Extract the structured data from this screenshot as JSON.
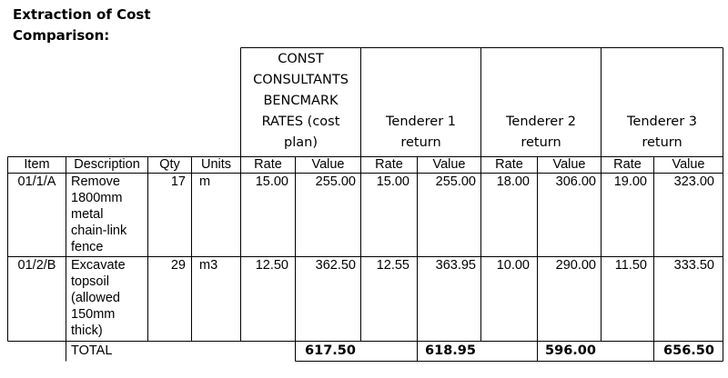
{
  "title": {
    "line1": "Extraction of Cost",
    "line2": "Comparison:"
  },
  "group_headers": {
    "benchmark": [
      "CONST",
      "CONSULTANTS",
      "BENCMARK",
      "RATES (cost",
      "plan)"
    ],
    "tenderer1": [
      "Tenderer 1",
      "return"
    ],
    "tenderer2": [
      "Tenderer 2",
      "return"
    ],
    "tenderer3": [
      "Tenderer 3",
      "return"
    ]
  },
  "columns": [
    "Item",
    "Description",
    "Qty",
    "Units",
    "Rate",
    "Value",
    "Rate",
    "Value",
    "Rate",
    "Value",
    "Rate",
    "Value"
  ],
  "rows": [
    {
      "item": "01/1/A",
      "description": [
        "Remove",
        "1800mm",
        "metal",
        "chain-link",
        "fence"
      ],
      "qty": "17",
      "units": "m",
      "b_rate": "15.00",
      "b_value": "255.00",
      "t1_rate": "15.00",
      "t1_value": "255.00",
      "t2_rate": "18.00",
      "t2_value": "306.00",
      "t3_rate": "19.00",
      "t3_value": "323.00"
    },
    {
      "item": "01/2/B",
      "description": [
        "Excavate",
        "topsoil",
        "(allowed",
        "150mm",
        "thick)"
      ],
      "qty": "29",
      "units": "m3",
      "b_rate": "12.50",
      "b_value": "362.50",
      "t1_rate": "12.55",
      "t1_value": "363.95",
      "t2_rate": "10.00",
      "t2_value": "290.00",
      "t3_rate": "11.50",
      "t3_value": "333.50"
    }
  ],
  "total": {
    "label": "TOTAL",
    "benchmark": "617.50",
    "tenderer1": "618.95",
    "tenderer2": "596.00",
    "tenderer3": "656.50"
  }
}
